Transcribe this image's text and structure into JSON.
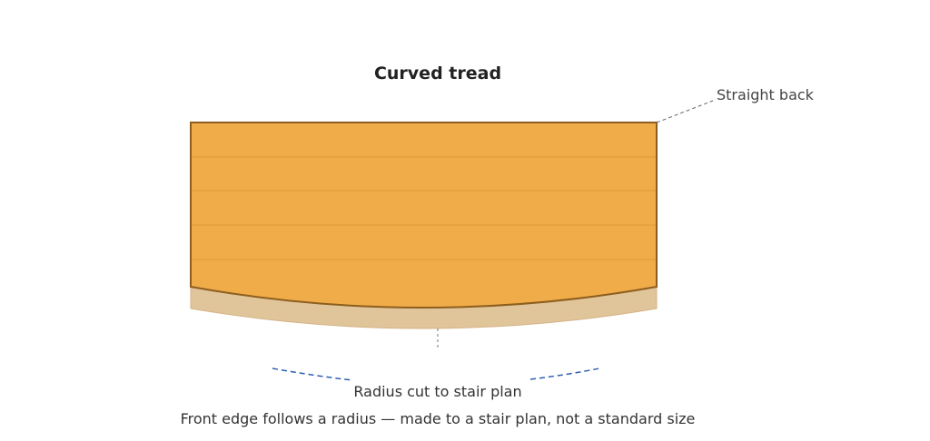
{
  "title": "Curved tread",
  "labels": {
    "back": "Straight back",
    "radius": "Radius cut to stair plan"
  },
  "caption": "Front edge follows a radius — made to a stair plan, not a standard size"
}
